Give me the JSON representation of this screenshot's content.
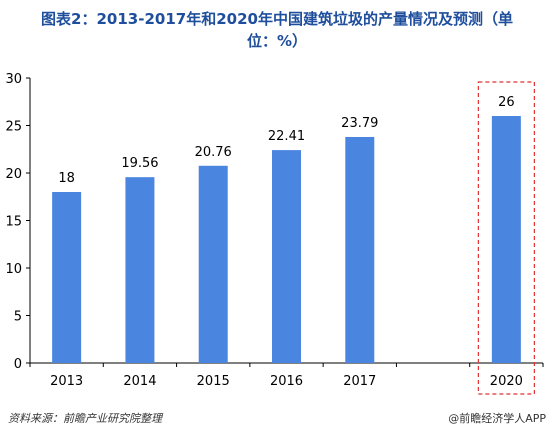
{
  "chart_data": {
    "type": "bar",
    "title": "图表2：2013-2017年和2020年中国建筑垃圾的产量情况及预测（单位：%）",
    "categories": [
      "2013",
      "2014",
      "2015",
      "2016",
      "2017",
      "",
      "2020"
    ],
    "values": [
      18,
      19.56,
      20.76,
      22.41,
      23.79,
      null,
      26
    ],
    "data_labels": [
      "18",
      "19.56",
      "20.76",
      "22.41",
      "23.79",
      "",
      "26"
    ],
    "ylim": [
      0,
      30
    ],
    "yticks": [
      0,
      5,
      10,
      15,
      20,
      25,
      30
    ],
    "grid": false,
    "bar_color": "#4a86e0",
    "highlight": {
      "category": "2020",
      "style": "dashed-box",
      "color": "#e03030"
    }
  },
  "footer": {
    "source": "资料来源：前瞻产业研究院整理",
    "credit": "@前瞻经济学人APP"
  }
}
